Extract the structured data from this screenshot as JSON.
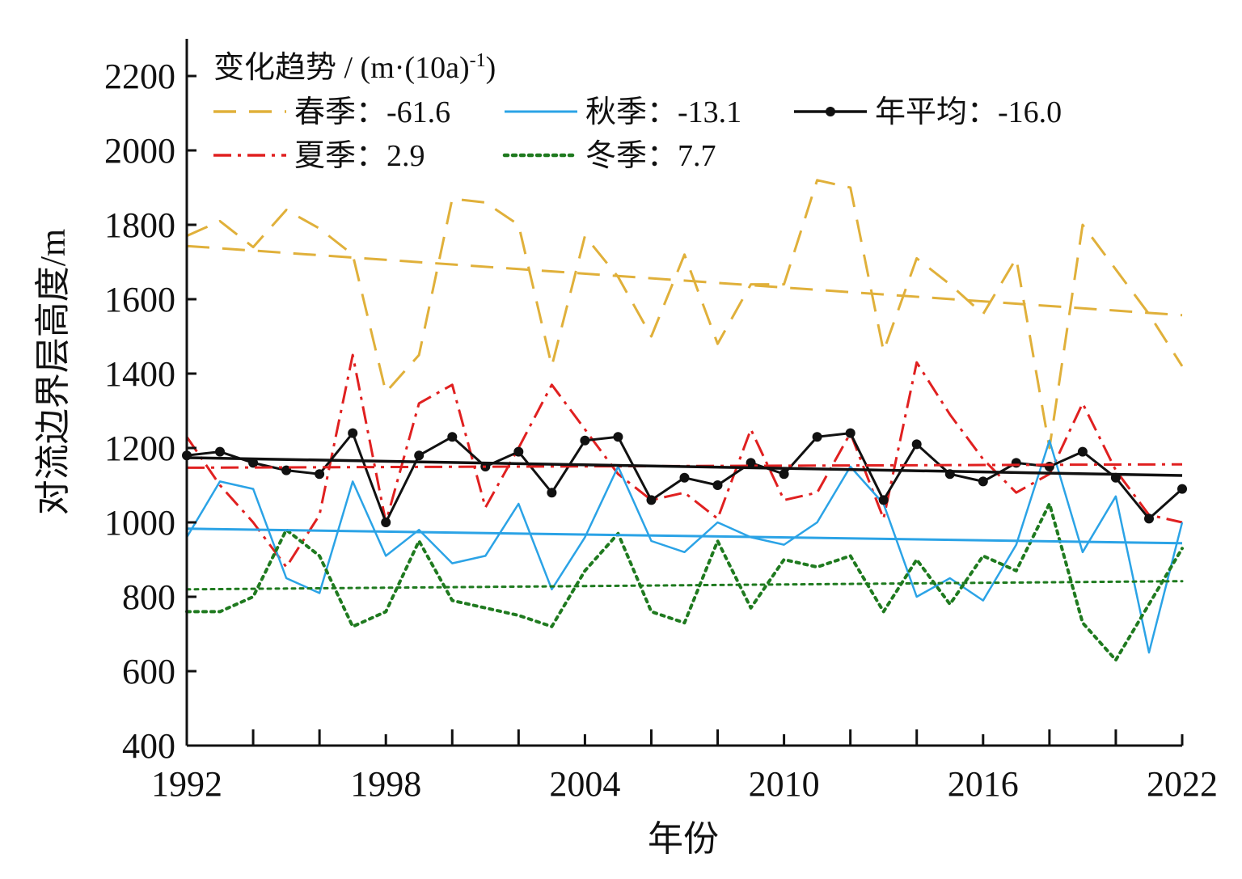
{
  "chart_data": {
    "type": "line",
    "xlabel": "年份",
    "ylabel": "对流边界层高度/m",
    "xlim": [
      1992,
      2022
    ],
    "ylim": [
      400,
      2300
    ],
    "xticks": [
      1992,
      1998,
      2004,
      2010,
      2016,
      2022
    ],
    "yticks": [
      400,
      600,
      800,
      1000,
      1200,
      1400,
      1600,
      1800,
      2000,
      2200
    ],
    "legend": {
      "title": "变化趋势 / (m·(10a)",
      "title_sup": "-1",
      "title_end": ")",
      "placement": "top-left"
    },
    "x": [
      1992,
      1993,
      1994,
      1995,
      1996,
      1997,
      1998,
      1999,
      2000,
      2001,
      2002,
      2003,
      2004,
      2005,
      2006,
      2007,
      2008,
      2009,
      2010,
      2011,
      2012,
      2013,
      2014,
      2015,
      2016,
      2017,
      2018,
      2019,
      2020,
      2021,
      2022
    ],
    "series": [
      {
        "id": "spring",
        "name": "春季：-61.6",
        "color": "#e0b03a",
        "style": "dashed",
        "values": [
          1770,
          1810,
          1740,
          1840,
          1790,
          1720,
          1350,
          1450,
          1870,
          1860,
          1800,
          1420,
          1770,
          1660,
          1500,
          1720,
          1480,
          1640,
          1640,
          1920,
          1900,
          1460,
          1710,
          1640,
          1560,
          1710,
          1200,
          1800,
          1680,
          1560,
          1420
        ],
        "trend": [
          1743,
          1557
        ]
      },
      {
        "id": "summer",
        "name": "夏季：2.9",
        "color": "#e02020",
        "style": "dashdot",
        "values": [
          1230,
          1100,
          1000,
          880,
          1020,
          1450,
          1000,
          1320,
          1370,
          1040,
          1200,
          1370,
          1250,
          1130,
          1060,
          1080,
          1010,
          1250,
          1060,
          1080,
          1240,
          1010,
          1430,
          1290,
          1170,
          1080,
          1130,
          1320,
          1140,
          1020,
          1000
        ],
        "trend": [
          1147,
          1156
        ]
      },
      {
        "id": "autumn",
        "name": "秋季：-13.1",
        "color": "#2ba3e6",
        "style": "solid",
        "values": [
          960,
          1110,
          1090,
          850,
          810,
          1110,
          910,
          980,
          890,
          910,
          1050,
          820,
          960,
          1150,
          950,
          920,
          1000,
          960,
          940,
          1000,
          1150,
          1050,
          800,
          850,
          790,
          940,
          1220,
          920,
          1070,
          650,
          1000
        ],
        "trend": [
          983,
          944
        ]
      },
      {
        "id": "winter",
        "name": "冬季：7.7",
        "color": "#1f7a1f",
        "style": "dotted",
        "values": [
          760,
          760,
          800,
          980,
          910,
          720,
          760,
          950,
          790,
          770,
          750,
          720,
          870,
          970,
          760,
          730,
          950,
          770,
          900,
          880,
          910,
          760,
          900,
          780,
          910,
          870,
          1050,
          730,
          630,
          780,
          930
        ],
        "trend": [
          820,
          842
        ]
      },
      {
        "id": "annual",
        "name": "年平均：-16.0",
        "color": "#111111",
        "style": "solid-marker",
        "values": [
          1180,
          1190,
          1160,
          1140,
          1130,
          1240,
          1000,
          1180,
          1230,
          1150,
          1190,
          1080,
          1220,
          1230,
          1060,
          1120,
          1100,
          1160,
          1130,
          1230,
          1240,
          1060,
          1210,
          1130,
          1110,
          1160,
          1150,
          1190,
          1120,
          1010,
          1090
        ],
        "trend": [
          1174,
          1126
        ]
      }
    ]
  }
}
